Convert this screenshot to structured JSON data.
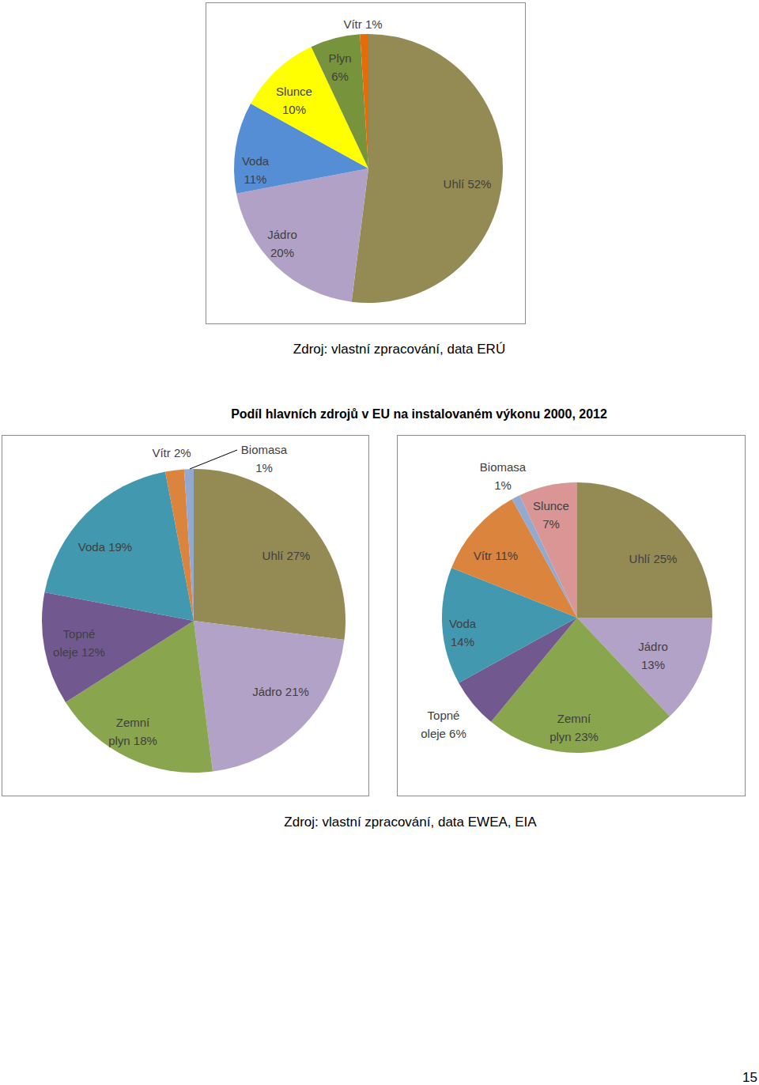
{
  "page": {
    "heading": "Podíl hlavních zdrojů v EU na instalovaném výkonu 2000, 2012",
    "sources": [
      "Zdroj: vlastní zpracování, data ERÚ",
      "Zdroj: vlastní zpracování, data EWEA, EIA"
    ],
    "page_number": "15"
  },
  "chart_data": [
    {
      "type": "pie",
      "data_labels": true,
      "categories": [
        "Uhlí",
        "Jádro",
        "Voda",
        "Slunce",
        "Plyn",
        "Vítr"
      ],
      "values": [
        52,
        20,
        11,
        10,
        6,
        1
      ],
      "value_labels": [
        "52%",
        "20%",
        "11%",
        "10%",
        "6%",
        "1%"
      ],
      "colors": [
        "#948a54",
        "#b2a1c7",
        "#558ed5",
        "#ffff00",
        "#77933c",
        "#e46c0a"
      ]
    },
    {
      "type": "pie",
      "data_labels": true,
      "categories": [
        "Uhlí",
        "Jádro",
        "Zemní plyn",
        "Topné oleje",
        "Voda",
        "Vítr",
        "Biomasa"
      ],
      "values": [
        27,
        21,
        18,
        12,
        19,
        2,
        1
      ],
      "value_labels": [
        "27%",
        "21%",
        "18%",
        "12%",
        "19%",
        "2%",
        "1%"
      ],
      "colors": [
        "#948a54",
        "#b3a2c7",
        "#89a54e",
        "#71588f",
        "#4198af",
        "#db843d",
        "#93a9cf"
      ]
    },
    {
      "type": "pie",
      "data_labels": true,
      "categories": [
        "Uhlí",
        "Jádro",
        "Zemní plyn",
        "Topné oleje",
        "Voda",
        "Vítr",
        "Biomasa",
        "Slunce"
      ],
      "values": [
        25,
        13,
        23,
        6,
        14,
        11,
        1,
        7
      ],
      "value_labels": [
        "25%",
        "13%",
        "23%",
        "6%",
        "14%",
        "11%",
        "1%",
        "7%"
      ],
      "colors": [
        "#948a54",
        "#b3a2c7",
        "#89a54e",
        "#71588f",
        "#4198af",
        "#db843d",
        "#93a9cf",
        "#d99694"
      ]
    }
  ]
}
